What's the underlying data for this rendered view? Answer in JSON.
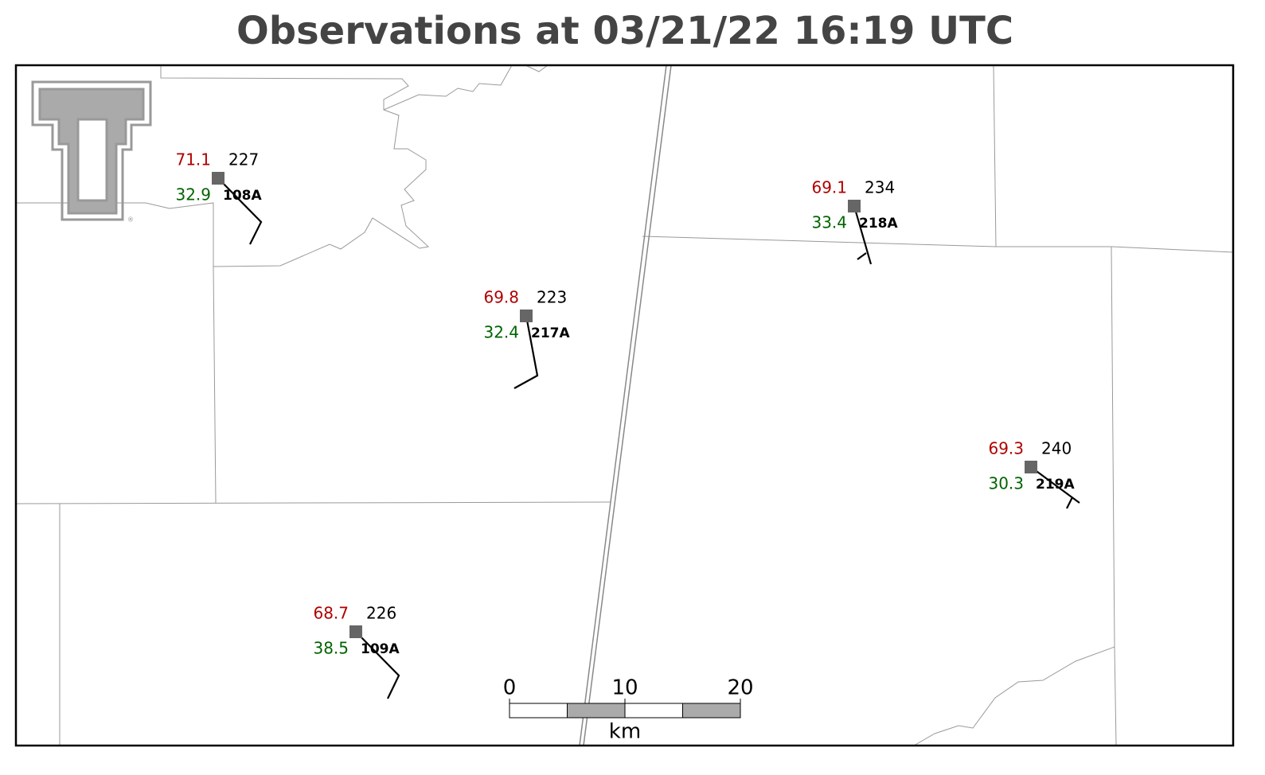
{
  "title": "Observations at 03/21/22 16:19 UTC",
  "stations": [
    {
      "id": "108A",
      "temperature": 71.1,
      "dewpoint": 32.9,
      "pressure": 227
    },
    {
      "id": "217A",
      "temperature": 69.8,
      "dewpoint": 32.4,
      "pressure": 223
    },
    {
      "id": "218A",
      "temperature": 69.1,
      "dewpoint": 33.4,
      "pressure": 234
    },
    {
      "id": "219A",
      "temperature": 69.3,
      "dewpoint": 30.3,
      "pressure": 240
    },
    {
      "id": "109A",
      "temperature": 68.7,
      "dewpoint": 38.5,
      "pressure": 226
    }
  ],
  "scale_bar": {
    "ticks": [
      0,
      10,
      20
    ],
    "unit": "km"
  }
}
